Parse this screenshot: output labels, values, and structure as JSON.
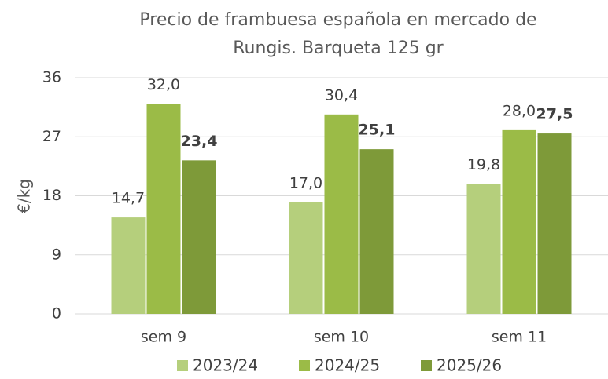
{
  "chart_data": {
    "type": "bar",
    "title": "Precio de frambuesa española en mercado de Rungis. Barqueta 125 gr",
    "y_label": "€/kg",
    "categories": [
      "sem 9",
      "sem 10",
      "sem 11"
    ],
    "series": [
      {
        "name": "2023/24",
        "color": "#b5cf7c",
        "values": [
          14.7,
          17.0,
          19.8
        ],
        "value_labels": [
          "14,7",
          "17,0",
          "19,8"
        ]
      },
      {
        "name": "2024/25",
        "color": "#9bbb47",
        "values": [
          32.0,
          30.4,
          28.0
        ],
        "value_labels": [
          "32,0",
          "30,4",
          "28,0"
        ]
      },
      {
        "name": "2025/26",
        "color": "#7e9a39",
        "values": [
          23.4,
          25.1,
          27.5
        ],
        "value_labels": [
          "23,4",
          "25,1",
          "27,5"
        ]
      }
    ],
    "ylim": [
      0,
      36
    ],
    "yticks": [
      0,
      9,
      18,
      27,
      36
    ],
    "grid": true,
    "legend": "bottom"
  }
}
